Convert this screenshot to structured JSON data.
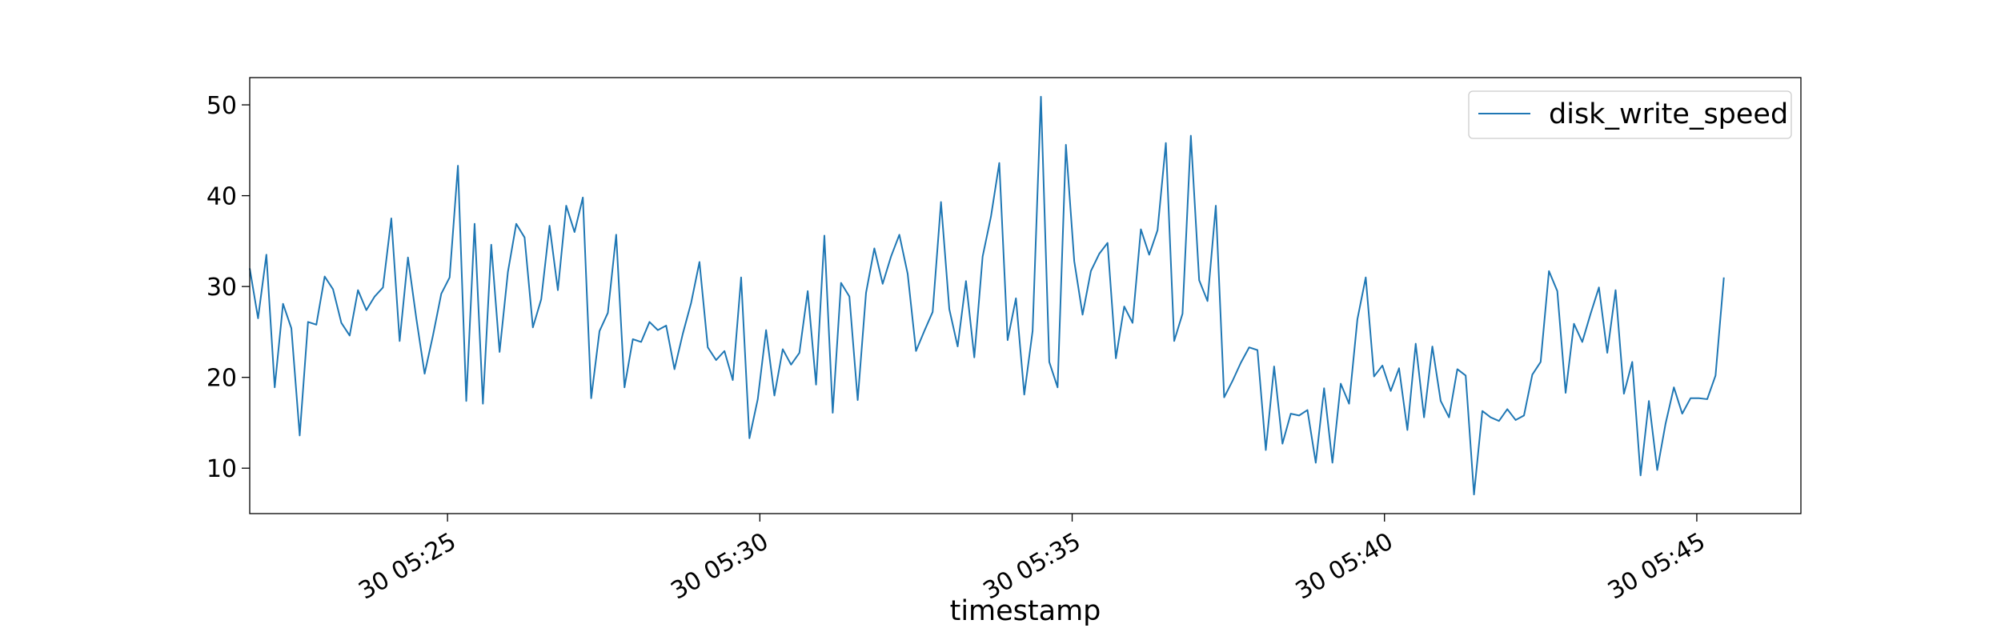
{
  "chart_data": {
    "type": "line",
    "xlabel": "timestamp",
    "ylabel": "",
    "title": "",
    "ylim": [
      5,
      53
    ],
    "xlim": [
      "30 05:21:50",
      "30 05:46:40"
    ],
    "yticks": [
      10,
      20,
      30,
      40,
      50
    ],
    "xticks": [
      {
        "time": "30 05:25:00",
        "label": "30 05:25"
      },
      {
        "time": "30 05:30:00",
        "label": "30 05:30"
      },
      {
        "time": "30 05:35:00",
        "label": "30 05:35"
      },
      {
        "time": "30 05:40:00",
        "label": "30 05:40"
      },
      {
        "time": "30 05:45:00",
        "label": "30 05:45"
      }
    ],
    "legend": {
      "position": "top-right"
    },
    "grid": false,
    "series": [
      {
        "name": "disk_write_speed",
        "color": "#1f77b4",
        "start": "30 05:21:50",
        "step_seconds": 8,
        "values": [
          32.0,
          26.5,
          33.5,
          18.9,
          28.1,
          25.4,
          13.6,
          26.1,
          25.8,
          31.1,
          29.7,
          26.0,
          24.6,
          29.6,
          27.4,
          28.9,
          29.9,
          37.5,
          24.0,
          33.2,
          26.5,
          20.4,
          24.6,
          29.2,
          31.0,
          43.3,
          17.4,
          36.9,
          17.1,
          34.6,
          22.8,
          31.6,
          36.9,
          35.4,
          25.5,
          28.6,
          36.7,
          29.6,
          38.9,
          36.0,
          39.8,
          17.7,
          25.1,
          27.1,
          35.7,
          18.9,
          24.2,
          23.9,
          26.1,
          25.2,
          25.7,
          20.9,
          24.8,
          28.2,
          32.7,
          23.3,
          21.9,
          22.9,
          19.7,
          31.0,
          13.3,
          17.6,
          25.2,
          18.0,
          23.1,
          21.4,
          22.7,
          29.5,
          19.2,
          35.6,
          16.1,
          30.4,
          28.9,
          17.5,
          29.3,
          34.2,
          30.3,
          33.3,
          35.7,
          31.4,
          22.9,
          25.1,
          27.2,
          39.3,
          27.5,
          23.4,
          30.6,
          22.2,
          33.3,
          37.7,
          43.6,
          24.1,
          28.7,
          18.1,
          25.1,
          50.9,
          21.7,
          18.9,
          45.6,
          32.8,
          26.9,
          31.7,
          33.6,
          34.8,
          22.1,
          27.8,
          26.0,
          36.3,
          33.5,
          36.2,
          45.8,
          24.0,
          27.0,
          46.6,
          30.7,
          28.4,
          38.9,
          17.8,
          19.6,
          21.6,
          23.3,
          23.0,
          12.0,
          21.2,
          12.7,
          16.0,
          15.8,
          16.4,
          10.6,
          18.8,
          10.6,
          19.3,
          17.1,
          26.4,
          31.0,
          20.1,
          21.3,
          18.5,
          21.0,
          14.2,
          23.7,
          15.6,
          23.4,
          17.4,
          15.6,
          20.9,
          20.2,
          7.1,
          16.3,
          15.6,
          15.2,
          16.5,
          15.3,
          15.8,
          20.3,
          21.7,
          31.7,
          29.5,
          18.3,
          25.9,
          23.9,
          27.0,
          29.9,
          22.7,
          29.6,
          18.2,
          21.7,
          9.2,
          17.4,
          9.8,
          14.9,
          18.9,
          16.0,
          17.7,
          17.7,
          17.6,
          20.2,
          31.0
        ]
      }
    ]
  }
}
